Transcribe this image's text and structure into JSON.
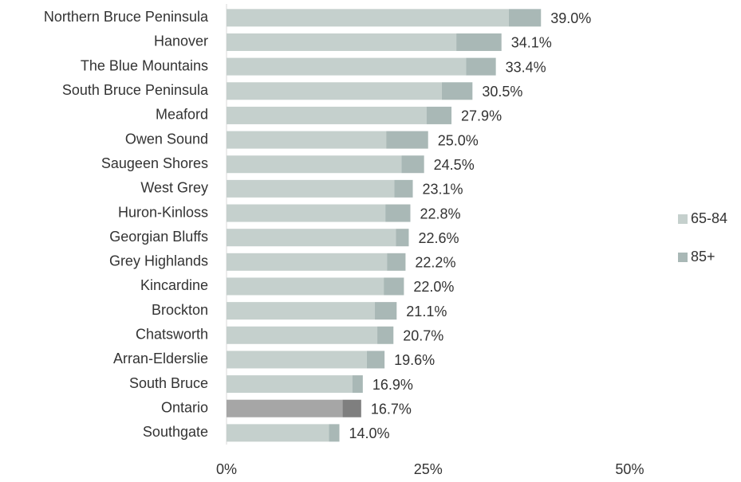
{
  "chart_data": {
    "type": "stacked-barh",
    "categories": [
      "Northern Bruce Peninsula",
      "Hanover",
      "The Blue Mountains",
      "South Bruce Peninsula",
      "Meaford",
      "Owen Sound",
      "Saugeen Shores",
      "West Grey",
      "Huron-Kinloss",
      "Georgian Bluffs",
      "Grey Highlands",
      "Kincardine",
      "Brockton",
      "Chatsworth",
      "Arran-Elderslie",
      "South Bruce",
      "Ontario",
      "Southgate"
    ],
    "series": [
      {
        "name": "65-84",
        "color": "#c5d0cd",
        "highlight_color": "#a6a6a6",
        "values": [
          35.0,
          28.5,
          29.7,
          26.7,
          24.8,
          19.8,
          21.7,
          20.8,
          19.7,
          21.0,
          19.9,
          19.5,
          18.4,
          18.7,
          17.4,
          15.6,
          14.4,
          12.7
        ]
      },
      {
        "name": "85+",
        "color": "#a9b8b6",
        "highlight_color": "#7f7f7f",
        "values": [
          4.0,
          5.6,
          3.7,
          3.8,
          3.1,
          5.2,
          2.8,
          2.3,
          3.1,
          1.6,
          2.3,
          2.5,
          2.7,
          2.0,
          2.2,
          1.3,
          2.3,
          1.3
        ]
      }
    ],
    "highlight_index": 16,
    "totals": [
      39.0,
      34.1,
      33.4,
      30.5,
      27.9,
      25.0,
      24.5,
      23.1,
      22.8,
      22.6,
      22.2,
      22.0,
      21.1,
      20.7,
      19.6,
      16.9,
      16.7,
      14.0
    ],
    "total_labels": [
      "39.0%",
      "34.1%",
      "33.4%",
      "30.5%",
      "27.9%",
      "25.0%",
      "24.5%",
      "23.1%",
      "22.8%",
      "22.6%",
      "22.2%",
      "22.0%",
      "21.1%",
      "20.7%",
      "19.6%",
      "16.9%",
      "16.7%",
      "14.0%"
    ],
    "xlim": [
      0,
      64.3
    ],
    "xticks": [
      {
        "value": 0,
        "label": "0%"
      },
      {
        "value": 25,
        "label": "25%"
      },
      {
        "value": 50,
        "label": "50%"
      }
    ],
    "legend": "right"
  }
}
